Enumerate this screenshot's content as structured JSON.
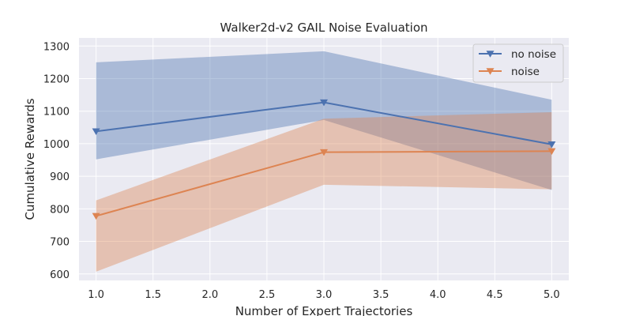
{
  "chart_data": {
    "type": "line",
    "title": "Walker2d-v2 GAIL Noise Evaluation",
    "xlabel": "Number of Expert Trajectories",
    "ylabel": "Cumulative Rewards",
    "x": [
      1.0,
      3.0,
      5.0
    ],
    "xlim": [
      0.85,
      5.15
    ],
    "ylim": [
      580,
      1325
    ],
    "xticks": [
      1.0,
      1.5,
      2.0,
      2.5,
      3.0,
      3.5,
      4.0,
      4.5,
      5.0
    ],
    "xtick_labels": [
      "1.0",
      "1.5",
      "2.0",
      "2.5",
      "3.0",
      "3.5",
      "4.0",
      "4.5",
      "5.0"
    ],
    "yticks": [
      600,
      700,
      800,
      900,
      1000,
      1100,
      1200,
      1300
    ],
    "ytick_labels": [
      "600",
      "700",
      "800",
      "900",
      "1000",
      "1100",
      "1200",
      "1300"
    ],
    "grid": true,
    "legend_position": "top-right",
    "series": [
      {
        "name": "no noise",
        "color": "#4c72b0",
        "marker": "triangle-down",
        "values": [
          1038,
          1127,
          998
        ],
        "lower": [
          952,
          1073,
          858
        ],
        "upper": [
          1250,
          1284,
          1135
        ]
      },
      {
        "name": "noise",
        "color": "#dd8452",
        "marker": "triangle-down",
        "values": [
          778,
          974,
          977
        ],
        "lower": [
          607,
          874,
          860
        ],
        "upper": [
          826,
          1077,
          1097
        ]
      }
    ]
  }
}
